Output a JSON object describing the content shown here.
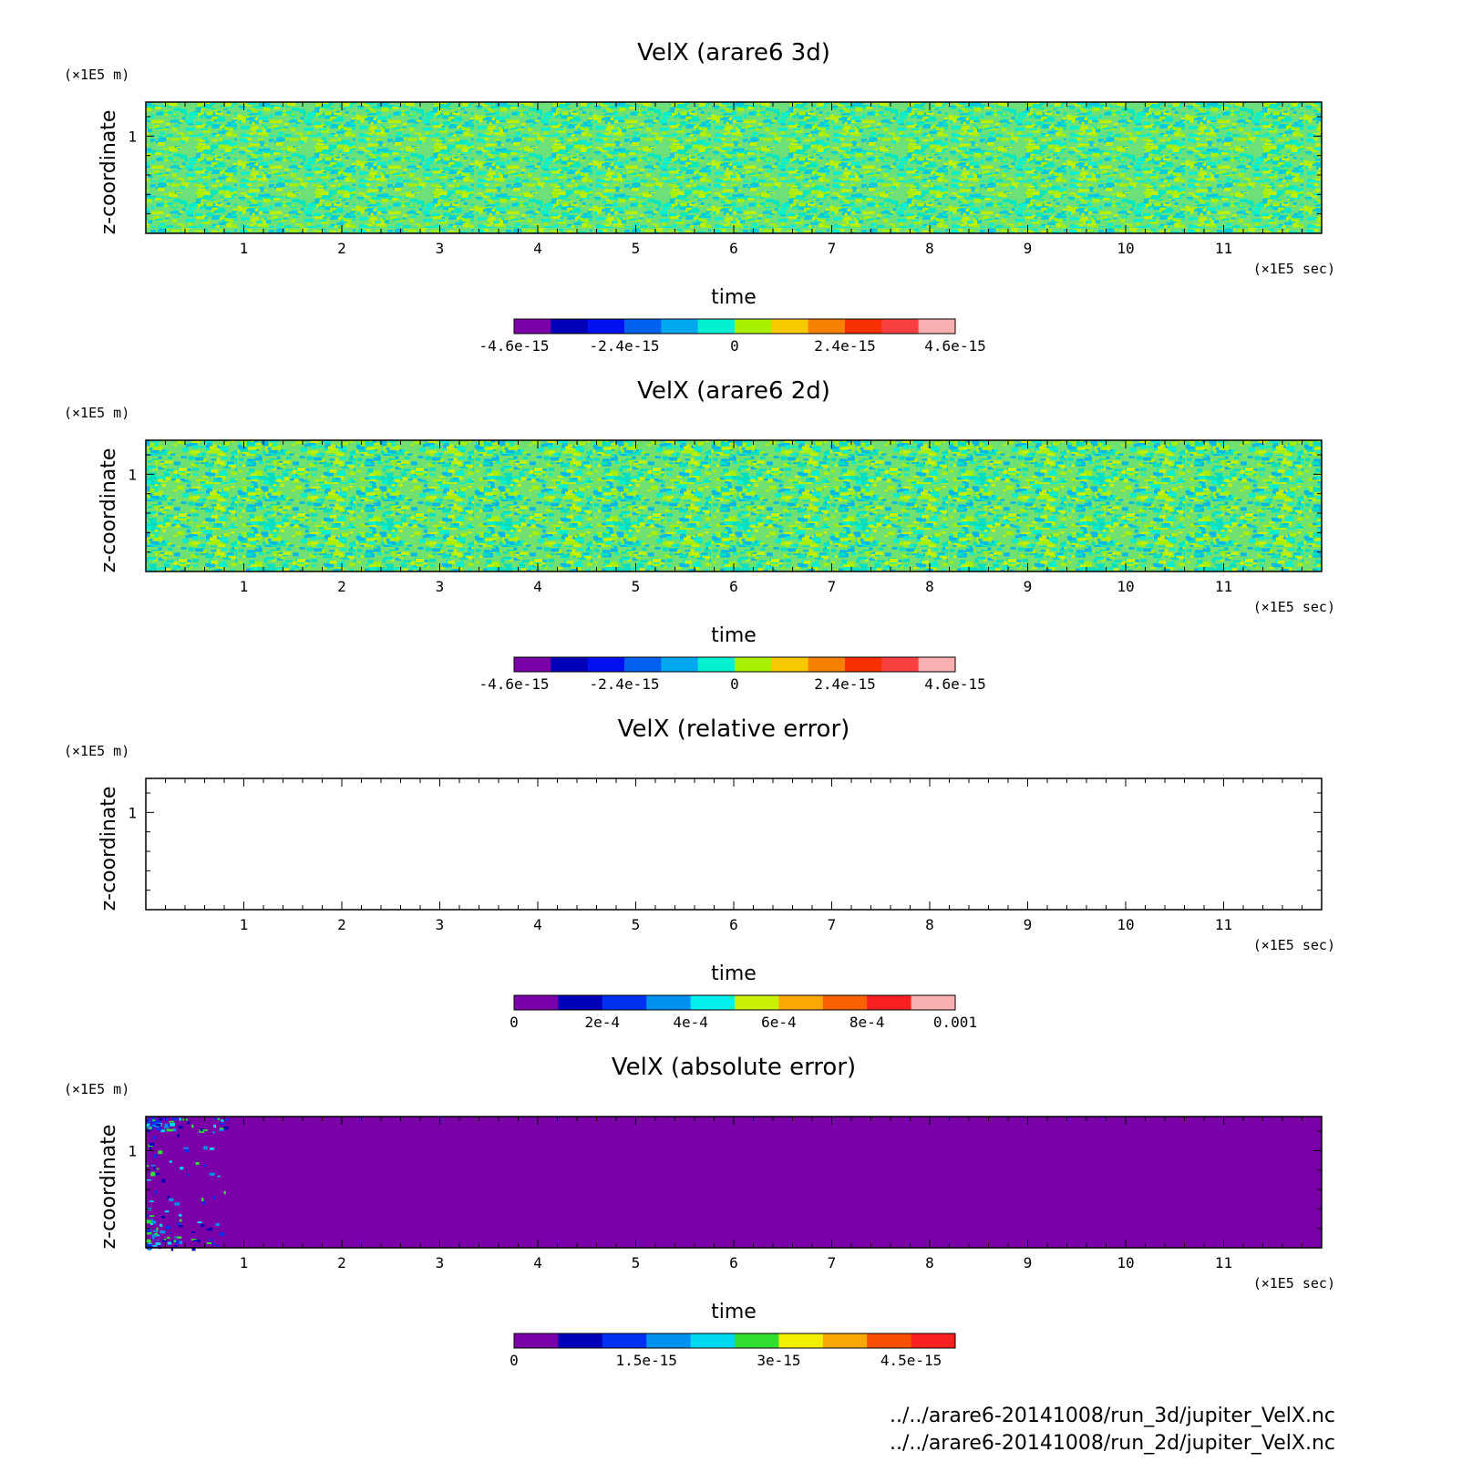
{
  "chart_data": [
    {
      "type": "heatmap",
      "title": "VelX (arare6 3d)",
      "xlabel": "time",
      "ylabel": "z-coordinate",
      "x_unit": "(×1E5 sec)",
      "y_unit": "(×1E5 m)",
      "xlim": [
        0,
        12
      ],
      "ylim": [
        0,
        1.35
      ],
      "x_ticks": [
        "1",
        "2",
        "3",
        "4",
        "5",
        "6",
        "7",
        "8",
        "9",
        "10",
        "11"
      ],
      "y_ticks": [
        "1"
      ],
      "field": "noise",
      "colorbar": {
        "colors": [
          "#7a00a8",
          "#0000b8",
          "#0010f0",
          "#0060f0",
          "#00a8f0",
          "#00f0d0",
          "#a8f000",
          "#f8c800",
          "#f88000",
          "#f83000",
          "#f84040",
          "#f8b0b0"
        ],
        "labels": [
          "-4.6e-15",
          "-2.4e-15",
          "0",
          "2.4e-15",
          "4.6e-15"
        ],
        "label_pos": [
          0,
          0.25,
          0.5,
          0.75,
          1.0
        ]
      }
    },
    {
      "type": "heatmap",
      "title": "VelX (arare6 2d)",
      "xlabel": "time",
      "ylabel": "z-coordinate",
      "x_unit": "(×1E5 sec)",
      "y_unit": "(×1E5 m)",
      "xlim": [
        0,
        12
      ],
      "ylim": [
        0,
        1.35
      ],
      "x_ticks": [
        "1",
        "2",
        "3",
        "4",
        "5",
        "6",
        "7",
        "8",
        "9",
        "10",
        "11"
      ],
      "y_ticks": [
        "1"
      ],
      "field": "noise",
      "colorbar": {
        "colors": [
          "#7a00a8",
          "#0000b8",
          "#0010f0",
          "#0060f0",
          "#00a8f0",
          "#00f0d0",
          "#a8f000",
          "#f8c800",
          "#f88000",
          "#f83000",
          "#f84040",
          "#f8b0b0"
        ],
        "labels": [
          "-4.6e-15",
          "-2.4e-15",
          "0",
          "2.4e-15",
          "4.6e-15"
        ],
        "label_pos": [
          0,
          0.25,
          0.5,
          0.75,
          1.0
        ]
      }
    },
    {
      "type": "heatmap",
      "title": "VelX (relative error)",
      "xlabel": "time",
      "ylabel": "z-coordinate",
      "x_unit": "(×1E5 sec)",
      "y_unit": "(×1E5 m)",
      "xlim": [
        0,
        12
      ],
      "ylim": [
        0,
        1.35
      ],
      "x_ticks": [
        "1",
        "2",
        "3",
        "4",
        "5",
        "6",
        "7",
        "8",
        "9",
        "10",
        "11"
      ],
      "y_ticks": [
        "1"
      ],
      "field": "empty",
      "colorbar": {
        "colors": [
          "#7a00a8",
          "#0000b8",
          "#0030f0",
          "#0090f0",
          "#00f0f0",
          "#c8f000",
          "#f8a800",
          "#f86000",
          "#f82020",
          "#f8b0b0"
        ],
        "labels": [
          "0",
          "2e-4",
          "4e-4",
          "6e-4",
          "8e-4",
          "0.001"
        ],
        "label_pos": [
          0,
          0.2,
          0.4,
          0.6,
          0.8,
          1.0
        ]
      }
    },
    {
      "type": "heatmap",
      "title": "VelX (absolute error)",
      "xlabel": "time",
      "ylabel": "z-coordinate",
      "x_unit": "(×1E5 sec)",
      "y_unit": "(×1E5 m)",
      "xlim": [
        0,
        12
      ],
      "ylim": [
        0,
        1.35
      ],
      "x_ticks": [
        "1",
        "2",
        "3",
        "4",
        "5",
        "6",
        "7",
        "8",
        "9",
        "10",
        "11"
      ],
      "y_ticks": [
        "1"
      ],
      "field": "uniform-with-noise-near-x0",
      "colorbar": {
        "colors": [
          "#7a00a8",
          "#0000b8",
          "#0030f0",
          "#0090f0",
          "#00d8f0",
          "#30e030",
          "#f0f000",
          "#f8a800",
          "#f85000",
          "#f82020"
        ],
        "labels": [
          "0",
          "1.5e-15",
          "3e-15",
          "4.5e-15"
        ],
        "label_pos": [
          0,
          0.3,
          0.6,
          0.9
        ]
      }
    }
  ],
  "footer": [
    "../../arare6-20141008/run_3d/jupiter_VelX.nc",
    "../../arare6-20141008/run_2d/jupiter_VelX.nc"
  ]
}
